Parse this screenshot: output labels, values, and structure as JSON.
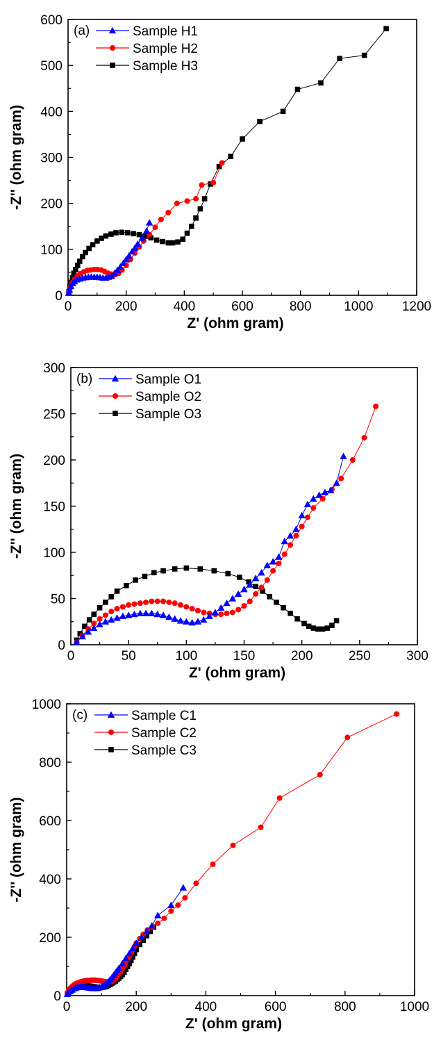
{
  "chart_data": [
    {
      "type": "scatter",
      "panel_label": "(a)",
      "xlabel": "Z' (ohm gram)",
      "ylabel": "-Z'' (ohm gram)",
      "xlim": [
        0,
        1200
      ],
      "ylim": [
        0,
        600
      ],
      "xticks": [
        0,
        200,
        400,
        600,
        800,
        1000,
        1200
      ],
      "yticks": [
        0,
        100,
        200,
        300,
        400,
        500,
        600
      ],
      "legend_position": "top-left",
      "series": [
        {
          "name": "Sample H1",
          "color": "#0000ff",
          "marker": "triangle",
          "x": [
            2,
            5,
            10,
            16,
            22,
            30,
            40,
            50,
            60,
            70,
            80,
            90,
            100,
            110,
            120,
            130,
            140,
            150,
            160,
            170,
            180,
            190,
            200,
            210,
            220,
            230,
            240,
            255,
            270,
            280
          ],
          "y": [
            5,
            12,
            20,
            26,
            30,
            34,
            36,
            38,
            39,
            40,
            40,
            40,
            40,
            39,
            38,
            38,
            40,
            42,
            48,
            55,
            62,
            70,
            78,
            86,
            95,
            103,
            112,
            125,
            140,
            158
          ]
        },
        {
          "name": "Sample H2",
          "color": "#ff0000",
          "marker": "circle",
          "x": [
            3,
            8,
            14,
            22,
            32,
            42,
            54,
            66,
            78,
            90,
            102,
            114,
            126,
            138,
            150,
            162,
            174,
            186,
            200,
            215,
            230,
            245,
            260,
            280,
            300,
            320,
            345,
            375,
            410,
            440,
            460,
            500,
            530
          ],
          "y": [
            8,
            18,
            27,
            35,
            42,
            47,
            51,
            54,
            55,
            56,
            56,
            55,
            52,
            48,
            46,
            45,
            48,
            55,
            65,
            78,
            92,
            105,
            118,
            132,
            148,
            165,
            180,
            200,
            205,
            210,
            240,
            245,
            288
          ]
        },
        {
          "name": "Sample H3",
          "color": "#000000",
          "marker": "square",
          "x": [
            3,
            6,
            10,
            15,
            20,
            26,
            33,
            40,
            50,
            60,
            72,
            85,
            100,
            115,
            130,
            148,
            165,
            185,
            205,
            225,
            245,
            265,
            285,
            305,
            325,
            345,
            360,
            378,
            395,
            410,
            425,
            440,
            455,
            470,
            490,
            520,
            560,
            600,
            660,
            740,
            790,
            870,
            935,
            1020,
            1095
          ],
          "y": [
            8,
            18,
            28,
            38,
            48,
            56,
            65,
            74,
            84,
            93,
            102,
            110,
            118,
            124,
            129,
            133,
            136,
            137,
            136,
            134,
            132,
            128,
            125,
            120,
            117,
            114,
            114,
            116,
            122,
            135,
            150,
            168,
            188,
            210,
            242,
            280,
            302,
            340,
            378,
            400,
            448,
            462,
            515,
            522,
            580
          ]
        }
      ]
    },
    {
      "type": "scatter",
      "panel_label": "(b)",
      "xlabel": "Z' (ohm gram)",
      "ylabel": "-Z'' (ohm gram)",
      "xlim": [
        0,
        300
      ],
      "ylim": [
        0,
        300
      ],
      "xticks": [
        0,
        50,
        100,
        150,
        200,
        250,
        300
      ],
      "yticks": [
        0,
        50,
        100,
        150,
        200,
        250,
        300
      ],
      "legend_position": "top-left",
      "series": [
        {
          "name": "Sample O1",
          "color": "#0000ff",
          "marker": "triangle",
          "x": [
            5,
            10,
            15,
            20,
            25,
            30,
            35,
            40,
            45,
            50,
            55,
            60,
            65,
            70,
            75,
            80,
            85,
            90,
            95,
            100,
            105,
            110,
            115,
            120,
            125,
            130,
            135,
            140,
            145,
            150,
            155,
            160,
            165,
            170,
            175,
            180,
            185,
            190,
            195,
            200,
            205,
            210,
            215,
            220,
            225,
            230,
            236
          ],
          "y": [
            3,
            9,
            14,
            18,
            22,
            25,
            27,
            29,
            31,
            32,
            33,
            34,
            34,
            34,
            33,
            32,
            30,
            28,
            26,
            25,
            24,
            25,
            27,
            31,
            35,
            40,
            45,
            50,
            55,
            60,
            65,
            72,
            78,
            86,
            90,
            95,
            112,
            118,
            125,
            140,
            152,
            158,
            162,
            165,
            167,
            175,
            204
          ]
        },
        {
          "name": "Sample O2",
          "color": "#ff0000",
          "marker": "circle",
          "x": [
            5,
            10,
            15,
            20,
            25,
            30,
            35,
            40,
            45,
            50,
            55,
            60,
            65,
            70,
            75,
            80,
            85,
            90,
            95,
            100,
            105,
            110,
            115,
            120,
            125,
            130,
            135,
            140,
            145,
            150,
            155,
            160,
            165,
            170,
            175,
            180,
            185,
            190,
            195,
            200,
            205,
            210,
            218,
            226,
            234,
            244,
            254,
            264
          ],
          "y": [
            3,
            10,
            17,
            23,
            28,
            32,
            36,
            39,
            41,
            43,
            44,
            45,
            46,
            47,
            47,
            47,
            46,
            45,
            43,
            41,
            39,
            37,
            35,
            34,
            33,
            33,
            34,
            35,
            38,
            42,
            47,
            55,
            62,
            70,
            80,
            88,
            98,
            108,
            118,
            128,
            138,
            148,
            158,
            168,
            180,
            200,
            224,
            258
          ]
        },
        {
          "name": "Sample O3",
          "color": "#000000",
          "marker": "square",
          "x": [
            5,
            8,
            12,
            16,
            20,
            25,
            30,
            35,
            40,
            48,
            56,
            64,
            72,
            80,
            90,
            100,
            112,
            124,
            136,
            146,
            154,
            160,
            166,
            172,
            178,
            184,
            190,
            196,
            202,
            206,
            210,
            214,
            218,
            222,
            226,
            230
          ],
          "y": [
            5,
            12,
            20,
            27,
            33,
            40,
            46,
            52,
            58,
            64,
            70,
            74,
            78,
            80,
            82,
            83,
            82,
            80,
            77,
            73,
            68,
            63,
            58,
            52,
            46,
            40,
            34,
            28,
            23,
            20,
            18,
            17,
            17,
            18,
            21,
            26
          ]
        }
      ]
    },
    {
      "type": "scatter",
      "panel_label": "(c)",
      "xlabel": "Z' (ohm gram)",
      "ylabel": "-Z'' (ohm gram)",
      "xlim": [
        0,
        1000
      ],
      "ylim": [
        0,
        1000
      ],
      "xticks": [
        0,
        200,
        400,
        600,
        800,
        1000
      ],
      "yticks": [
        0,
        200,
        400,
        600,
        800,
        1000
      ],
      "legend_position": "top-left",
      "series": [
        {
          "name": "Sample C1",
          "color": "#0000ff",
          "marker": "triangle",
          "x": [
            2,
            5,
            10,
            15,
            20,
            25,
            30,
            35,
            40,
            45,
            50,
            55,
            60,
            65,
            70,
            75,
            80,
            85,
            90,
            95,
            100,
            105,
            110,
            115,
            120,
            125,
            130,
            135,
            140,
            145,
            150,
            160,
            170,
            180,
            190,
            200,
            215,
            230,
            245,
            262,
            300,
            335
          ],
          "y": [
            5,
            10,
            15,
            20,
            24,
            26,
            28,
            29,
            30,
            30,
            30,
            29,
            28,
            27,
            26,
            25,
            25,
            25,
            26,
            28,
            30,
            33,
            37,
            42,
            48,
            55,
            62,
            70,
            78,
            86,
            94,
            110,
            128,
            145,
            162,
            180,
            200,
            220,
            240,
            275,
            310,
            370
          ]
        },
        {
          "name": "Sample C2",
          "color": "#ff0000",
          "marker": "circle",
          "x": [
            2,
            5,
            10,
            15,
            20,
            25,
            30,
            35,
            40,
            45,
            50,
            55,
            60,
            65,
            70,
            75,
            80,
            85,
            90,
            95,
            100,
            105,
            110,
            115,
            120,
            125,
            130,
            135,
            140,
            145,
            150,
            155,
            160,
            165,
            170,
            175,
            180,
            185,
            190,
            195,
            200,
            210,
            220,
            232,
            246,
            262,
            280,
            300,
            320,
            340,
            372,
            420,
            478,
            558,
            612,
            728,
            807,
            948
          ],
          "y": [
            10,
            18,
            25,
            31,
            36,
            40,
            43,
            45,
            47,
            49,
            50,
            51,
            52,
            52,
            53,
            53,
            53,
            52,
            52,
            51,
            50,
            49,
            48,
            47,
            47,
            47,
            48,
            52,
            58,
            65,
            74,
            82,
            92,
            102,
            113,
            124,
            135,
            146,
            157,
            168,
            180,
            195,
            210,
            225,
            235,
            248,
            265,
            290,
            310,
            335,
            385,
            450,
            515,
            577,
            677,
            757,
            885,
            965
          ]
        },
        {
          "name": "Sample C3",
          "color": "#000000",
          "marker": "square",
          "x": [
            2,
            5,
            8,
            12,
            16,
            20,
            25,
            30,
            35,
            40,
            45,
            50,
            55,
            60,
            65,
            70,
            75,
            80,
            85,
            90,
            95,
            100,
            105,
            110,
            115,
            120,
            125,
            130,
            135,
            140,
            145,
            150,
            155,
            160,
            165,
            170,
            175,
            180,
            185,
            190,
            195,
            200,
            210,
            220,
            230,
            240,
            250
          ],
          "y": [
            5,
            10,
            14,
            18,
            22,
            25,
            28,
            30,
            32,
            33,
            34,
            34,
            34,
            34,
            33,
            32,
            31,
            30,
            29,
            28,
            28,
            28,
            29,
            30,
            32,
            35,
            38,
            42,
            46,
            50,
            55,
            60,
            66,
            72,
            80,
            90,
            100,
            110,
            120,
            132,
            145,
            158,
            175,
            190,
            205,
            220,
            235
          ]
        }
      ]
    }
  ]
}
